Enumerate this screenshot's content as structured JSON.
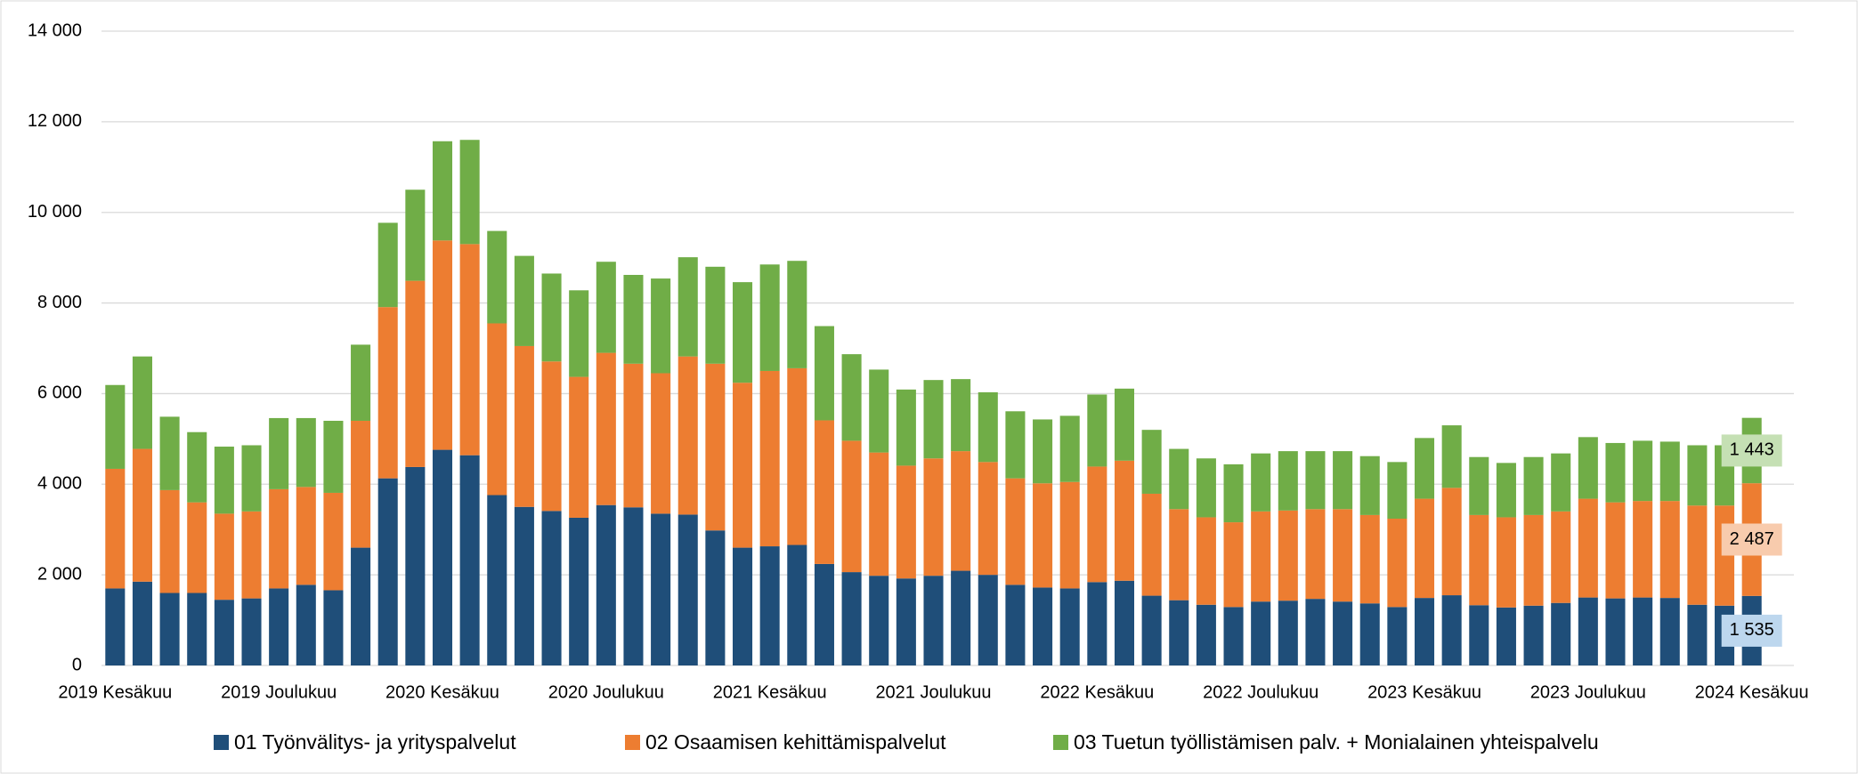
{
  "chart_data": {
    "type": "stacked-bar",
    "categories": [
      "2019 Kesäkuu",
      null,
      null,
      null,
      null,
      null,
      "2019 Joulukuu",
      null,
      null,
      null,
      null,
      null,
      "2020 Kesäkuu",
      null,
      null,
      null,
      null,
      null,
      "2020 Joulukuu",
      null,
      null,
      null,
      null,
      null,
      "2021 Kesäkuu",
      null,
      null,
      null,
      null,
      null,
      "2021 Joulukuu",
      null,
      null,
      null,
      null,
      null,
      "2022 Kesäkuu",
      null,
      null,
      null,
      null,
      null,
      "2022 Joulukuu",
      null,
      null,
      null,
      null,
      null,
      "2023 Kesäkuu",
      null,
      null,
      null,
      null,
      null,
      "2023 Joulukuu",
      null,
      null,
      null,
      null,
      null,
      "2024 Kesäkuu"
    ],
    "series": [
      {
        "name": "01 Työnvälitys- ja yrityspalvelut",
        "color": "#1f4e79",
        "label_color": "#bdd7ee",
        "values": [
          1700,
          1850,
          1600,
          1600,
          1450,
          1480,
          1700,
          1780,
          1660,
          2600,
          4130,
          4380,
          4760,
          4640,
          3760,
          3500,
          3410,
          3260,
          3540,
          3490,
          3350,
          3330,
          2980,
          2600,
          2630,
          2660,
          2240,
          2060,
          1980,
          1920,
          1980,
          2090,
          2000,
          1780,
          1720,
          1700,
          1840,
          1870,
          1540,
          1440,
          1340,
          1290,
          1410,
          1430,
          1470,
          1410,
          1370,
          1290,
          1490,
          1550,
          1330,
          1280,
          1320,
          1380,
          1500,
          1480,
          1500,
          1490,
          1340,
          1320,
          1535
        ],
        "value_labels": [
          null,
          null,
          null,
          null,
          null,
          null,
          null,
          null,
          null,
          null,
          null,
          null,
          null,
          null,
          null,
          null,
          null,
          null,
          null,
          null,
          null,
          null,
          null,
          null,
          null,
          null,
          null,
          null,
          null,
          null,
          null,
          null,
          null,
          null,
          null,
          null,
          null,
          null,
          null,
          null,
          null,
          null,
          null,
          null,
          null,
          null,
          null,
          null,
          null,
          null,
          null,
          null,
          null,
          null,
          null,
          null,
          null,
          null,
          null,
          null,
          "1 535"
        ]
      },
      {
        "name": "02 Osaamisen kehittämispalvelut",
        "color": "#ed7d31",
        "label_color": "#f8cbad",
        "values": [
          2640,
          2930,
          2270,
          2000,
          1900,
          1920,
          2190,
          2160,
          2150,
          2800,
          3780,
          4110,
          4620,
          4660,
          3790,
          3550,
          3300,
          3110,
          3360,
          3170,
          3100,
          3490,
          3680,
          3640,
          3870,
          3900,
          3170,
          2900,
          2720,
          2490,
          2590,
          2640,
          2490,
          2350,
          2300,
          2350,
          2550,
          2650,
          2250,
          2010,
          1930,
          1870,
          1990,
          1990,
          1980,
          2040,
          1950,
          1950,
          2190,
          2370,
          1990,
          1990,
          2000,
          2020,
          2180,
          2120,
          2130,
          2140,
          2190,
          2210,
          2487
        ],
        "value_labels": [
          null,
          null,
          null,
          null,
          null,
          null,
          null,
          null,
          null,
          null,
          null,
          null,
          null,
          null,
          null,
          null,
          null,
          null,
          null,
          null,
          null,
          null,
          null,
          null,
          null,
          null,
          null,
          null,
          null,
          null,
          null,
          null,
          null,
          null,
          null,
          null,
          null,
          null,
          null,
          null,
          null,
          null,
          null,
          null,
          null,
          null,
          null,
          null,
          null,
          null,
          null,
          null,
          null,
          null,
          null,
          null,
          null,
          null,
          null,
          null,
          "2 487"
        ]
      },
      {
        "name": "03 Tuetun työllistämisen palv. + Monialainen yhteispalvelu",
        "color": "#70ad47",
        "label_color": "#c5e0b4",
        "values": [
          1850,
          2040,
          1620,
          1550,
          1480,
          1460,
          1570,
          1520,
          1590,
          1680,
          1860,
          2010,
          2190,
          2300,
          2040,
          1990,
          1940,
          1910,
          2010,
          1960,
          2090,
          2190,
          2140,
          2220,
          2350,
          2370,
          2080,
          1910,
          1830,
          1680,
          1730,
          1590,
          1540,
          1480,
          1410,
          1460,
          1590,
          1590,
          1410,
          1330,
          1300,
          1280,
          1280,
          1310,
          1280,
          1280,
          1300,
          1250,
          1340,
          1380,
          1280,
          1200,
          1280,
          1280,
          1360,
          1310,
          1330,
          1310,
          1330,
          1330,
          1443
        ],
        "value_labels": [
          null,
          null,
          null,
          null,
          null,
          null,
          null,
          null,
          null,
          null,
          null,
          null,
          null,
          null,
          null,
          null,
          null,
          null,
          null,
          null,
          null,
          null,
          null,
          null,
          null,
          null,
          null,
          null,
          null,
          null,
          null,
          null,
          null,
          null,
          null,
          null,
          null,
          null,
          null,
          null,
          null,
          null,
          null,
          null,
          null,
          null,
          null,
          null,
          null,
          null,
          null,
          null,
          null,
          null,
          null,
          null,
          null,
          null,
          null,
          null,
          "1 443"
        ]
      }
    ],
    "ylim": [
      0,
      14000
    ],
    "yticks": [
      0,
      {
        "value": 2000,
        "label": "2 000"
      },
      {
        "value": 4000,
        "label": "4 000"
      },
      {
        "value": 6000,
        "label": "6 000"
      },
      {
        "value": 8000,
        "label": "8 000"
      },
      {
        "value": 10000,
        "label": "10 000"
      },
      {
        "value": 12000,
        "label": "12 000"
      },
      {
        "value": 14000,
        "label": "14 000"
      }
    ],
    "grid": true,
    "legend": "bottom"
  }
}
